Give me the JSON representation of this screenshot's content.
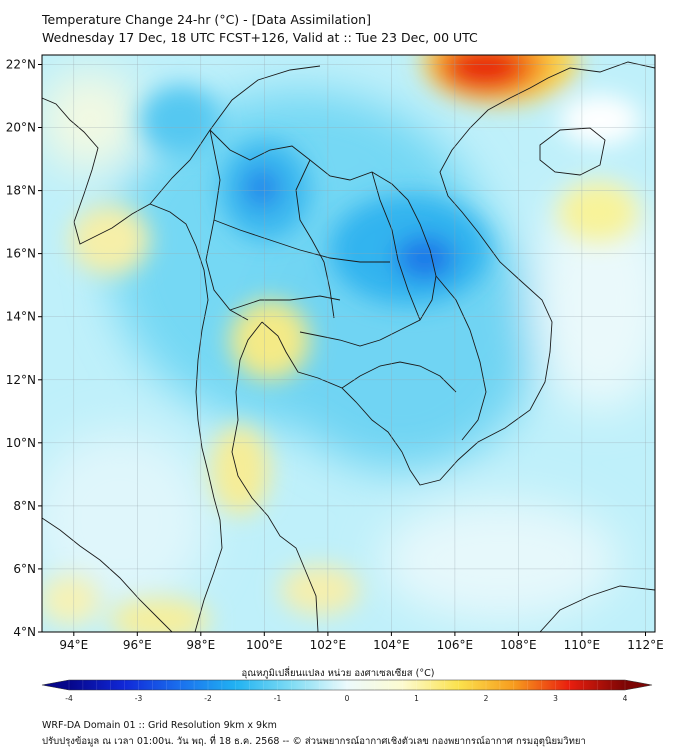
{
  "title": {
    "line1": "Temperature Change 24-hr (°C) - [Data Assimilation]",
    "line2": "Wednesday 17 Dec, 18 UTC FCST+126, Valid at :: Tue 23 Dec, 00 UTC"
  },
  "map": {
    "lon_labels": [
      "94°E",
      "96°E",
      "98°E",
      "100°E",
      "102°E",
      "104°E",
      "106°E",
      "108°E",
      "110°E",
      "112°E"
    ],
    "lat_labels": [
      "22°N",
      "20°N",
      "18°N",
      "16°N",
      "14°N",
      "12°N",
      "10°N",
      "8°N",
      "6°N",
      "4°N"
    ],
    "lon_values": [
      94,
      96,
      98,
      100,
      102,
      104,
      106,
      108,
      110,
      112
    ],
    "lat_values": [
      22,
      20,
      18,
      16,
      14,
      12,
      10,
      8,
      6,
      4
    ],
    "lon_range": [
      93,
      112.3
    ],
    "lat_range": [
      4,
      22.3
    ],
    "field": {
      "variable": "24-hr temperature change",
      "units": "°C",
      "hotspots": [
        {
          "name": "warm-north-vietnam",
          "lon": 107.4,
          "lat": 21.9,
          "value": 3.4
        },
        {
          "name": "cold-central-indochina",
          "lon": 105.2,
          "lat": 15.9,
          "value": -2.5
        },
        {
          "name": "cold-northern-thailand",
          "lon": 99.8,
          "lat": 17.6,
          "value": -2.0
        },
        {
          "name": "warm-gulf-of-thailand",
          "lon": 100.3,
          "lat": 13.1,
          "value": 0.7
        },
        {
          "name": "warm-south-china-sea",
          "lon": 110.7,
          "lat": 17.1,
          "value": 0.8
        },
        {
          "name": "warm-andaman-coast",
          "lon": 94.5,
          "lat": 16.0,
          "value": 0.6
        },
        {
          "name": "warm-peninsula",
          "lon": 99.6,
          "lat": 9.2,
          "value": 0.8
        },
        {
          "name": "warm-southwest",
          "lon": 97.4,
          "lat": 4.4,
          "value": 0.9
        }
      ]
    }
  },
  "colorbar": {
    "label": "อุณหภูมิเปลี่ยนแปลง หน่วย องศาเซลเซียส (°C)",
    "min": -4,
    "max": 4,
    "ticks": [
      "-4",
      "-3",
      "-2",
      "-1",
      "0",
      "1",
      "2",
      "3",
      "4"
    ],
    "tick_values": [
      -4,
      -3,
      -2,
      -1,
      0,
      1,
      2,
      3,
      4
    ],
    "colors": [
      "#06068a",
      "#1028d8",
      "#1a70ee",
      "#21b2f2",
      "#7fdcf4",
      "#ecfafc",
      "#fdfbd0",
      "#fbe24e",
      "#f79c1e",
      "#e91e0e",
      "#7c0504"
    ]
  },
  "footer": {
    "line1": "WRF-DA Domain 01 :: Grid Resolution 9km x 9km",
    "line2": "ปรับปรุงข้อมูล ณ เวลา 01:00น. วัน พฤ. ที่ 18 ธ.ค. 2568 -- © ส่วนพยากรณ์อากาศเชิงตัวเลข กองพยากรณ์อากาศ กรมอุตุนิยมวิทยา"
  }
}
